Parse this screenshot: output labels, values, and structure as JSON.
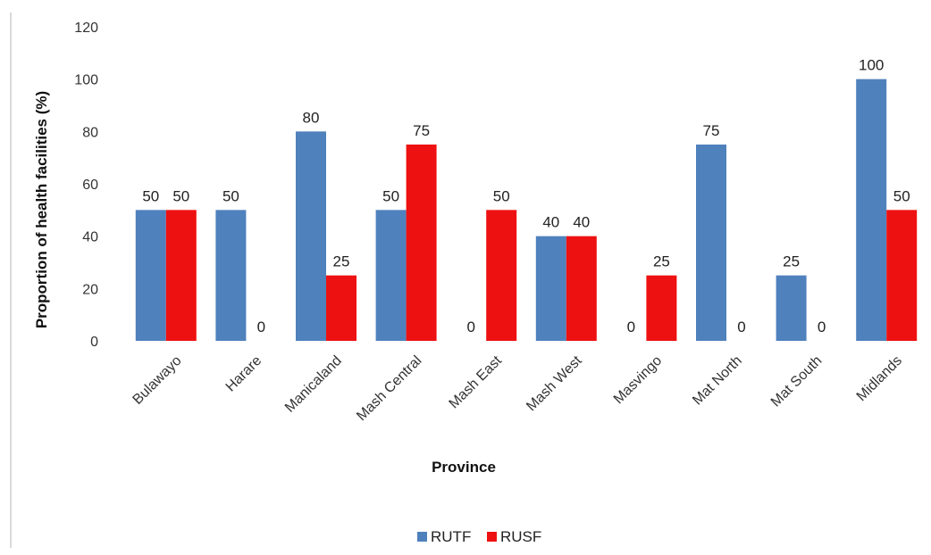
{
  "chart_data": {
    "type": "bar",
    "title": "",
    "xlabel": "Province",
    "ylabel": "Proportion of  health facilities (%)",
    "ylim": [
      0,
      120
    ],
    "yticks": [
      0,
      20,
      40,
      60,
      80,
      100,
      120
    ],
    "categories": [
      "Bulawayo",
      "Harare",
      "Manicaland",
      "Mash Central",
      "Mash East",
      "Mash West",
      "Masvingo",
      "Mat North",
      "Mat South",
      "Midlands"
    ],
    "series": [
      {
        "name": "RUTF",
        "color": "#4f81bd",
        "values": [
          50,
          50,
          80,
          50,
          0,
          40,
          0,
          75,
          25,
          100
        ]
      },
      {
        "name": "RUSF",
        "color": "#ee1111",
        "values": [
          50,
          0,
          25,
          75,
          50,
          40,
          25,
          0,
          0,
          50
        ]
      }
    ],
    "data_labels": true,
    "grid": false,
    "legend_position": "bottom"
  }
}
